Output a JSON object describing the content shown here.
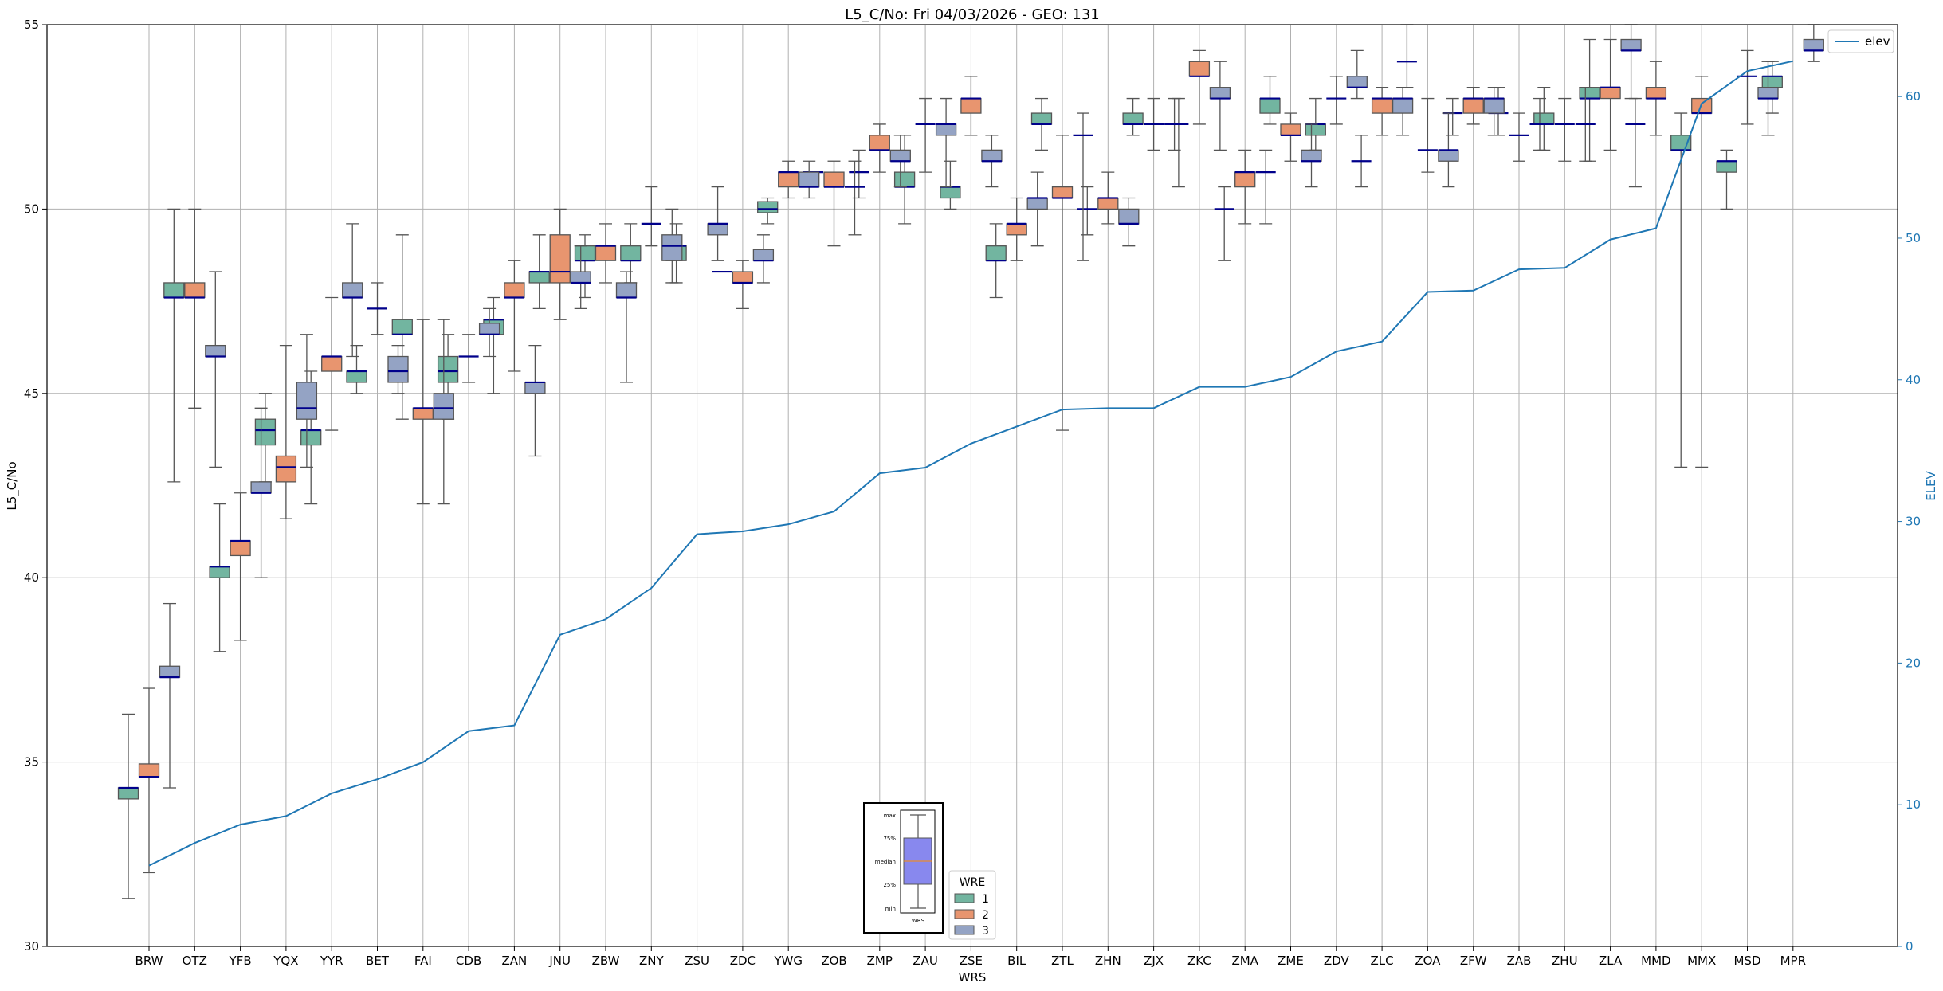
{
  "chart_data": {
    "type": "box",
    "title": "L5_C/No: Fri 04/03/2026 - GEO: 131",
    "xlabel": "WRS",
    "ylabel": "L5_C/No",
    "y2label": "ELEV",
    "ylim": [
      30,
      55
    ],
    "y2lim": [
      0,
      65.07
    ],
    "yticks": [
      30,
      35,
      40,
      45,
      50,
      55
    ],
    "y2ticks": [
      0,
      10,
      20,
      30,
      40,
      50,
      60
    ],
    "grid": true,
    "categories": [
      "BRW",
      "OTZ",
      "YFB",
      "YQX",
      "YYR",
      "BET",
      "FAI",
      "CDB",
      "ZAN",
      "JNU",
      "ZBW",
      "ZNY",
      "ZSU",
      "ZDC",
      "YWG",
      "ZOB",
      "ZMP",
      "ZAU",
      "ZSE",
      "BIL",
      "ZTL",
      "ZHN",
      "ZJX",
      "ZKC",
      "ZMA",
      "ZME",
      "ZDV",
      "ZLC",
      "ZOA",
      "ZFW",
      "ZAB",
      "ZHU",
      "ZLA",
      "MMD",
      "MMX",
      "MSD",
      "MPR"
    ],
    "box_format": [
      "min",
      "q1",
      "median",
      "q3",
      "max"
    ],
    "hue_title": "WRE",
    "series": [
      {
        "name": "1",
        "color": "#72b5a0",
        "boxes": [
          [
            31.3,
            34.0,
            34.3,
            34.3,
            36.3
          ],
          [
            42.6,
            47.6,
            47.6,
            48.0,
            50.0
          ],
          [
            38.0,
            40.0,
            40.3,
            40.3,
            42.0
          ],
          [
            42.6,
            43.6,
            44.0,
            44.3,
            45.0
          ],
          [
            42.0,
            43.6,
            44.0,
            44.0,
            45.6
          ],
          [
            45.0,
            45.3,
            45.6,
            45.6,
            46.3
          ],
          [
            44.3,
            46.6,
            46.6,
            47.0,
            49.3
          ],
          [
            44.3,
            45.3,
            45.6,
            46.0,
            46.6
          ],
          [
            45.0,
            46.6,
            47.0,
            47.0,
            47.6
          ],
          [
            47.3,
            48.0,
            48.3,
            48.3,
            49.3
          ],
          [
            47.6,
            48.6,
            48.6,
            49.0,
            49.3
          ],
          [
            48.0,
            48.6,
            48.6,
            49.0,
            49.6
          ],
          [
            48.0,
            48.6,
            49.0,
            49.0,
            49.6
          ],
          [
            48.3,
            48.3,
            48.3,
            48.3,
            48.3
          ],
          [
            49.6,
            49.9,
            50.0,
            50.2,
            50.3
          ],
          [
            51.0,
            51.0,
            51.0,
            51.0,
            51.0
          ],
          [
            50.3,
            51.0,
            51.0,
            51.0,
            51.6
          ],
          [
            49.6,
            50.6,
            50.6,
            51.0,
            52.0
          ],
          [
            50.0,
            50.3,
            50.6,
            50.6,
            51.3
          ],
          [
            47.6,
            48.6,
            48.6,
            49.0,
            49.6
          ],
          [
            51.6,
            52.3,
            52.3,
            52.6,
            53.0
          ],
          [
            49.3,
            50.0,
            50.0,
            50.0,
            50.6
          ],
          [
            52.0,
            52.3,
            52.3,
            52.6,
            53.0
          ],
          [
            50.6,
            52.3,
            52.3,
            52.3,
            53.0
          ],
          [
            48.6,
            50.0,
            50.0,
            50.0,
            50.6
          ],
          [
            52.3,
            52.6,
            53.0,
            53.0,
            53.6
          ],
          [
            51.6,
            52.0,
            52.3,
            52.3,
            53.0
          ],
          [
            50.6,
            51.3,
            51.3,
            51.3,
            52.0
          ],
          [
            53.3,
            54.0,
            54.0,
            54.0,
            55.0
          ],
          [
            52.0,
            52.6,
            52.6,
            52.6,
            53.0
          ],
          [
            52.0,
            52.6,
            52.6,
            52.6,
            53.3
          ],
          [
            51.6,
            52.3,
            52.3,
            52.6,
            53.3
          ],
          [
            51.3,
            53.0,
            53.0,
            53.3,
            54.6
          ],
          [
            50.6,
            52.3,
            52.3,
            52.3,
            53.0
          ],
          [
            43.0,
            51.6,
            51.6,
            52.0,
            52.6
          ],
          [
            50.0,
            51.0,
            51.3,
            51.3,
            51.6
          ],
          [
            52.6,
            53.3,
            53.6,
            53.6,
            54.0
          ]
        ]
      },
      {
        "name": "2",
        "color": "#e8956f",
        "boxes": [
          [
            32.0,
            34.6,
            34.6,
            34.95,
            37.0
          ],
          [
            44.6,
            47.6,
            47.6,
            48.0,
            50.0
          ],
          [
            38.3,
            40.6,
            41.0,
            41.0,
            42.3
          ],
          [
            41.6,
            42.6,
            43.0,
            43.3,
            46.3
          ],
          [
            44.0,
            45.6,
            46.0,
            46.0,
            47.6
          ],
          [
            46.6,
            47.3,
            47.3,
            47.3,
            48.0
          ],
          [
            42.0,
            44.3,
            44.6,
            44.6,
            47.0
          ],
          [
            45.3,
            46.0,
            46.0,
            46.0,
            46.6
          ],
          [
            45.6,
            47.6,
            47.6,
            48.0,
            48.6
          ],
          [
            47.0,
            48.0,
            48.3,
            49.3,
            50.0
          ],
          [
            48.0,
            48.6,
            49.0,
            49.0,
            49.6
          ],
          [
            49.0,
            49.6,
            49.6,
            49.6,
            50.6
          ],
          null,
          [
            47.3,
            48.0,
            48.0,
            48.3,
            48.6
          ],
          [
            50.3,
            50.6,
            51.0,
            51.0,
            51.3
          ],
          [
            49.0,
            50.6,
            50.6,
            51.0,
            51.3
          ],
          [
            51.0,
            51.6,
            51.6,
            52.0,
            52.3
          ],
          [
            51.0,
            52.3,
            52.3,
            52.3,
            53.0
          ],
          [
            52.0,
            52.6,
            53.0,
            53.0,
            53.6
          ],
          [
            48.6,
            49.3,
            49.6,
            49.6,
            50.3
          ],
          [
            44.0,
            50.3,
            50.3,
            50.6,
            52.0
          ],
          [
            49.6,
            50.0,
            50.3,
            50.3,
            51.0
          ],
          [
            51.6,
            52.3,
            52.3,
            52.3,
            53.0
          ],
          [
            52.3,
            53.6,
            53.6,
            54.0,
            54.3
          ],
          [
            49.6,
            50.6,
            51.0,
            51.0,
            51.6
          ],
          [
            51.3,
            52.0,
            52.0,
            52.3,
            52.6
          ],
          [
            52.3,
            53.0,
            53.0,
            53.0,
            53.6
          ],
          [
            52.0,
            52.6,
            53.0,
            53.0,
            53.3
          ],
          [
            51.0,
            51.6,
            51.6,
            51.6,
            53.0
          ],
          [
            52.3,
            52.6,
            53.0,
            53.0,
            53.3
          ],
          [
            51.3,
            52.0,
            52.0,
            52.0,
            52.6
          ],
          [
            51.3,
            52.3,
            52.3,
            52.3,
            53.0
          ],
          [
            51.6,
            53.0,
            53.3,
            53.3,
            54.6
          ],
          [
            52.0,
            53.0,
            53.0,
            53.3,
            54.0
          ],
          [
            43.0,
            52.6,
            52.6,
            53.0,
            53.6
          ],
          [
            52.3,
            53.6,
            53.6,
            53.6,
            54.3
          ],
          null
        ]
      },
      {
        "name": "3",
        "color": "#94a3c4",
        "boxes": [
          [
            34.3,
            37.3,
            37.3,
            37.6,
            39.3
          ],
          [
            43.0,
            46.0,
            46.0,
            46.3,
            48.3
          ],
          [
            40.0,
            42.3,
            42.3,
            42.6,
            44.6
          ],
          [
            43.0,
            44.3,
            44.6,
            45.3,
            46.6
          ],
          [
            46.0,
            47.6,
            47.6,
            48.0,
            49.6
          ],
          [
            45.0,
            45.3,
            45.6,
            46.0,
            46.3
          ],
          [
            42.0,
            44.3,
            44.6,
            45.0,
            47.0
          ],
          [
            46.0,
            46.6,
            46.6,
            46.9,
            47.3
          ],
          [
            43.3,
            45.0,
            45.3,
            45.3,
            46.3
          ],
          [
            47.3,
            48.0,
            48.0,
            48.3,
            49.0
          ],
          [
            45.3,
            47.6,
            47.6,
            48.0,
            48.3
          ],
          [
            48.0,
            48.6,
            49.0,
            49.3,
            50.0
          ],
          [
            48.6,
            49.3,
            49.6,
            49.6,
            50.6
          ],
          [
            48.0,
            48.6,
            48.6,
            48.9,
            49.3
          ],
          [
            50.3,
            50.6,
            50.6,
            51.0,
            51.3
          ],
          [
            49.3,
            50.6,
            50.6,
            50.6,
            51.3
          ],
          [
            50.6,
            51.3,
            51.3,
            51.6,
            52.0
          ],
          [
            50.6,
            52.0,
            52.3,
            52.3,
            53.0
          ],
          [
            50.6,
            51.3,
            51.3,
            51.6,
            52.0
          ],
          [
            49.0,
            50.0,
            50.3,
            50.3,
            51.0
          ],
          [
            48.6,
            52.0,
            52.0,
            52.0,
            52.6
          ],
          [
            49.0,
            49.6,
            49.6,
            50.0,
            50.3
          ],
          [
            51.6,
            52.3,
            52.3,
            52.3,
            53.0
          ],
          [
            51.6,
            53.0,
            53.0,
            53.3,
            54.0
          ],
          [
            49.6,
            51.0,
            51.0,
            51.0,
            51.6
          ],
          [
            50.6,
            51.3,
            51.3,
            51.6,
            52.3
          ],
          [
            53.0,
            53.3,
            53.3,
            53.6,
            54.3
          ],
          [
            52.0,
            52.6,
            53.0,
            53.0,
            53.3
          ],
          [
            50.6,
            51.3,
            51.6,
            51.6,
            52.6
          ],
          [
            52.0,
            52.6,
            53.0,
            53.0,
            53.3
          ],
          [
            51.6,
            52.3,
            52.3,
            52.3,
            53.0
          ],
          [
            51.3,
            52.3,
            52.3,
            52.3,
            53.3
          ],
          [
            53.0,
            54.3,
            54.3,
            54.6,
            55.0
          ],
          null,
          null,
          [
            52.0,
            53.0,
            53.0,
            53.3,
            54.0
          ],
          [
            54.0,
            54.3,
            54.3,
            54.6,
            55.0
          ]
        ]
      }
    ],
    "elev_series": {
      "name": "elev",
      "color": "#1f77b4",
      "values": [
        5.7,
        7.3,
        8.6,
        9.2,
        10.8,
        11.8,
        13.0,
        15.2,
        15.6,
        22.0,
        23.1,
        25.3,
        29.1,
        29.3,
        29.8,
        30.7,
        33.4,
        33.8,
        35.5,
        36.7,
        37.9,
        38.0,
        38.0,
        39.5,
        39.5,
        40.2,
        42.0,
        42.7,
        46.2,
        46.3,
        47.8,
        47.9,
        49.9,
        50.7,
        59.5,
        61.8,
        62.5
      ]
    },
    "median_color": "#00008b",
    "legend_placement": "top-right",
    "hue_legend_placement": "bottom-center",
    "inset_key": {
      "labels": [
        "max",
        "75%",
        "median",
        "25%",
        "min"
      ],
      "xlabel": "WRS"
    }
  }
}
